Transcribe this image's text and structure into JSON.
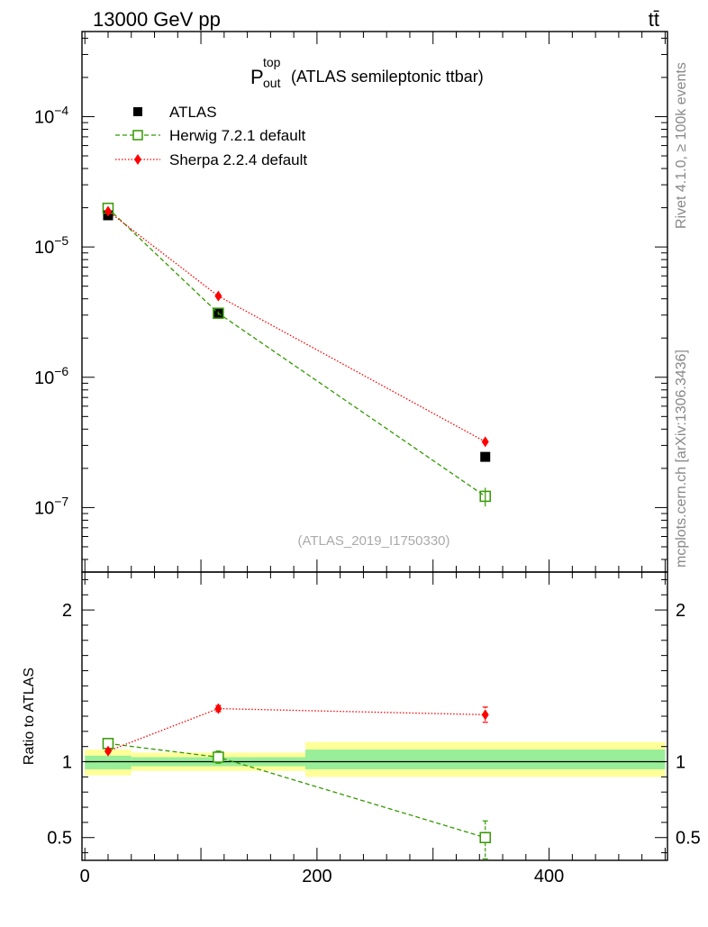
{
  "header": {
    "left": "13000 GeV pp",
    "right": "tt̄"
  },
  "side_labels": {
    "rivet": "Rivet 4.1.0, ≥ 100k events",
    "mcplots": "mcplots.cern.ch [arXiv:1306.3436]"
  },
  "chart_data": {
    "type": "scatter",
    "title": {
      "main": "P",
      "sup": "top",
      "sub": "out",
      "rest": "(ATLAS semileptonic ttbar)"
    },
    "watermark": "(ATLAS_2019_I1750330)",
    "xlim": [
      -2.5,
      502
    ],
    "x_ticks": [
      "0",
      "200",
      "400"
    ],
    "main": {
      "yscale": "log",
      "ylim": [
        3.2e-08,
        0.00045
      ],
      "y_ticks": [
        {
          "value": 0.0001,
          "mant": "10",
          "exp": "−4"
        },
        {
          "value": 1e-05,
          "mant": "10",
          "exp": "−5"
        },
        {
          "value": 1e-06,
          "mant": "10",
          "exp": "−6"
        },
        {
          "value": 1e-07,
          "mant": "10",
          "exp": "−7"
        }
      ],
      "legend": [
        {
          "key": "atlas",
          "label": "ATLAS"
        },
        {
          "key": "herwig",
          "label": "Herwig 7.2.1 default"
        },
        {
          "key": "sherpa",
          "label": "Sherpa 2.2.4 default"
        }
      ],
      "series": [
        {
          "key": "atlas",
          "name": "ATLAS",
          "color": "#000000",
          "marker": "square-filled",
          "x": [
            20,
            115,
            345
          ],
          "y": [
            1.75e-05,
            3.1e-06,
            2.45e-07
          ]
        },
        {
          "key": "herwig",
          "name": "Herwig 7.2.1 default",
          "color": "#339900",
          "marker": "square-open",
          "line": "dashed",
          "x": [
            20,
            115,
            345
          ],
          "y": [
            1.98e-05,
            3.1e-06,
            1.22e-07
          ],
          "yerr": [
            5e-07,
            1e-07,
            2e-08
          ]
        },
        {
          "key": "sherpa",
          "name": "Sherpa 2.2.4 default",
          "color": "#ff0000",
          "marker": "diamond-filled",
          "line": "dotted",
          "x": [
            20,
            115,
            345
          ],
          "y": [
            1.88e-05,
            4.2e-06,
            3.2e-07
          ],
          "yerr": [
            3e-07,
            8e-08,
            1e-08
          ]
        }
      ]
    },
    "ratio": {
      "ylabel": "Ratio to ATLAS",
      "ylim": [
        0.35,
        2.25
      ],
      "y_ticks": [
        "0.5",
        "1",
        "2"
      ],
      "y_tick_values": [
        0.5,
        1,
        2
      ],
      "bands": [
        {
          "x0": 0,
          "x1": 40,
          "yellow": [
            0.91,
            1.08
          ],
          "green": [
            0.95,
            1.04
          ]
        },
        {
          "x0": 40,
          "x1": 190,
          "yellow": [
            0.94,
            1.06
          ],
          "green": [
            0.97,
            1.03
          ]
        },
        {
          "x0": 190,
          "x1": 500,
          "yellow": [
            0.9,
            1.13
          ],
          "green": [
            0.95,
            1.08
          ]
        }
      ],
      "series": [
        {
          "key": "herwig",
          "color": "#339900",
          "x": [
            20,
            115,
            345
          ],
          "y": [
            1.12,
            1.03,
            0.5
          ],
          "err_lo": [
            0.02,
            0.04,
            0.14
          ],
          "err_hi": [
            0.02,
            0.04,
            0.11
          ]
        },
        {
          "key": "sherpa",
          "color": "#ff0000",
          "x": [
            20,
            115,
            345
          ],
          "y": [
            1.07,
            1.35,
            1.31
          ],
          "err_lo": [
            0.01,
            0.02,
            0.05
          ],
          "err_hi": [
            0.01,
            0.02,
            0.05
          ]
        }
      ]
    }
  }
}
